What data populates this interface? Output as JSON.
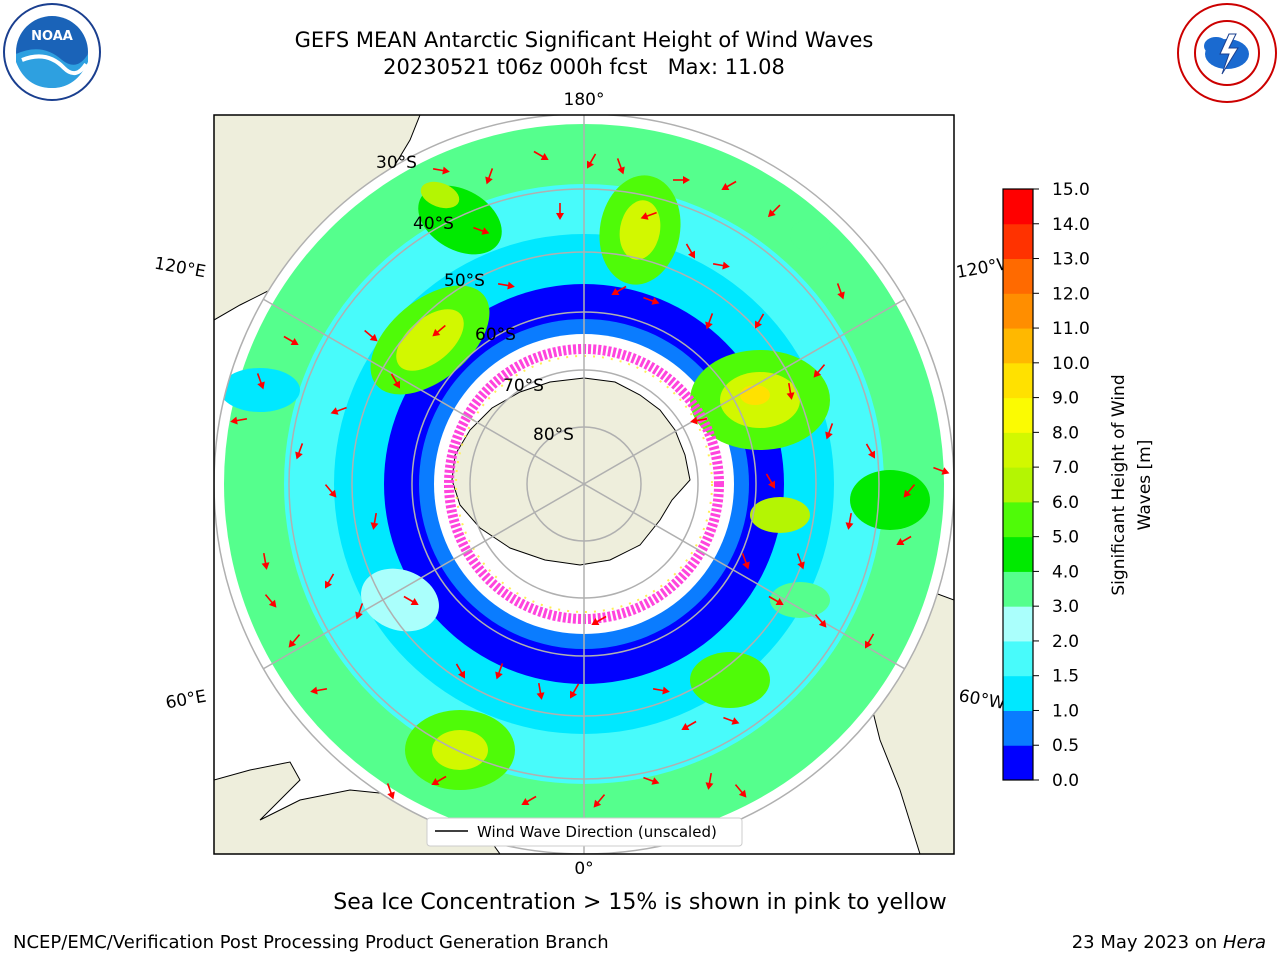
{
  "header": {
    "title_line1": "GEFS MEAN Antarctic Significant Height of Wind Waves",
    "title_line2": "20230521 t06z 000h fcst   Max: 11.08"
  },
  "logos": {
    "left": "noaa-logo",
    "right": "national-weather-service-logo"
  },
  "map": {
    "projection": "south-polar-stereographic",
    "longitude_labels": {
      "top": "180°",
      "bottom": "0°",
      "upper_left": "120°E",
      "upper_right": "120°W",
      "lower_left": "60°E",
      "lower_right": "60°W"
    },
    "latitude_labels": [
      "30°S",
      "40°S",
      "50°S",
      "60°S",
      "70°S",
      "80°S"
    ],
    "legend_label": "Wind Wave Direction (unscaled)",
    "land_color": "#eeeedc",
    "arrow_color": "#ff0000",
    "sea_ice_color": "#ff44dd"
  },
  "colorbar": {
    "label_line1": "Significant Height of Wind",
    "label_line2": "Waves [m]",
    "ticks": [
      "0.0",
      "0.5",
      "1.0",
      "1.5",
      "2.0",
      "3.0",
      "4.0",
      "5.0",
      "6.0",
      "7.0",
      "8.0",
      "9.0",
      "10.0",
      "11.0",
      "12.0",
      "13.0",
      "14.0",
      "15.0"
    ],
    "colors": [
      "#0000ff",
      "#0a7cff",
      "#00e8ff",
      "#48fbfb",
      "#aafffc",
      "#55ff8d",
      "#00ea00",
      "#4ffb08",
      "#b4f503",
      "#d2f800",
      "#fbfb02",
      "#ffe100",
      "#ffb800",
      "#ff8e00",
      "#ff6a00",
      "#ff3200",
      "#ff0000"
    ]
  },
  "chart_data": {
    "type": "heatmap",
    "title": "GEFS MEAN Antarctic Significant Height of Wind Waves",
    "subtitle": "20230521 t06z 000h fcst   Max: 11.08",
    "max_value": 11.08,
    "units": "m",
    "colorbar_range": [
      0,
      15
    ]
  },
  "note": "Sea Ice Concentration > 15% is shown in pink to yellow",
  "footer": {
    "left": "NCEP/EMC/Verification Post Processing Product Generation Branch",
    "date": "23 May 2023 on ",
    "machine": "Hera"
  }
}
